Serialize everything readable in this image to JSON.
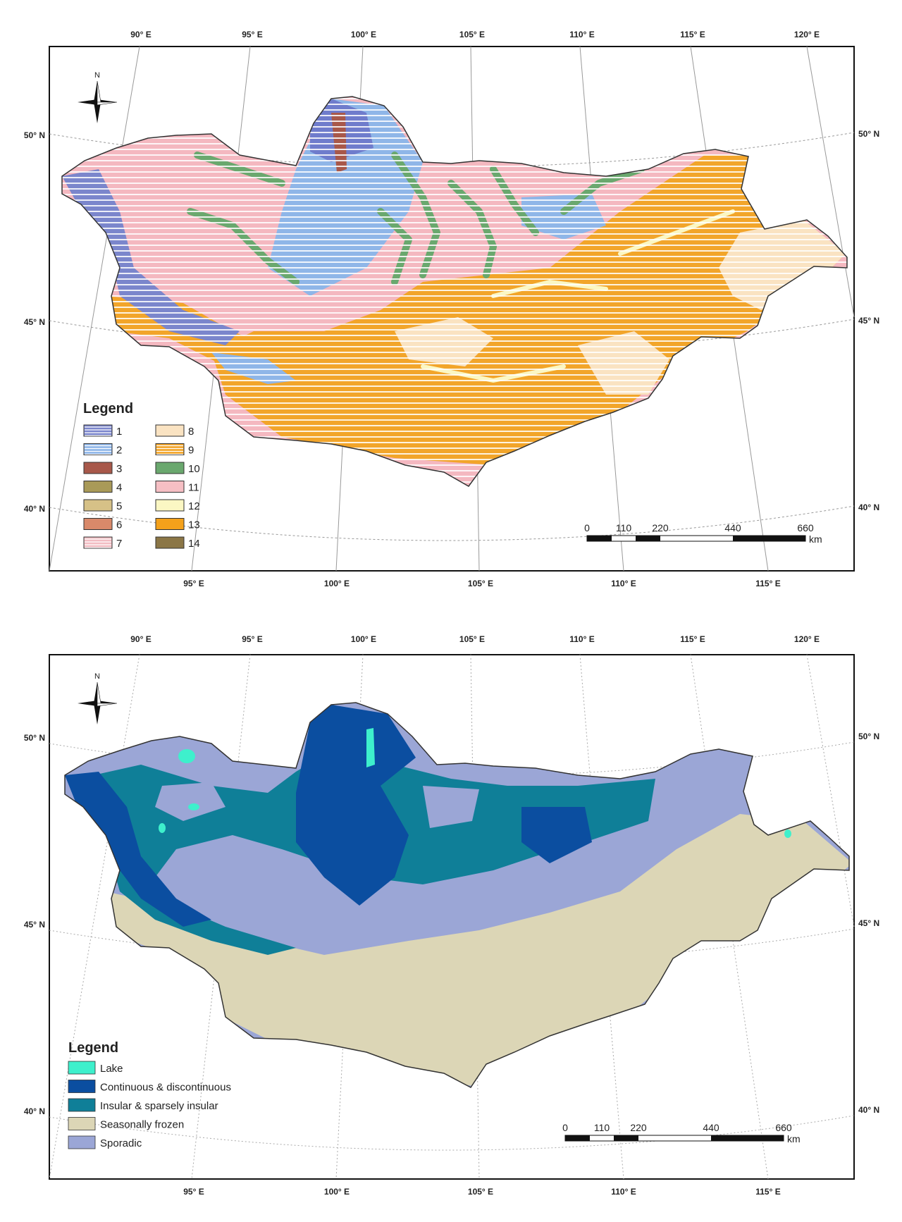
{
  "map1": {
    "top_lon_ticks": [
      "90° E",
      "95° E",
      "100° E",
      "105° E",
      "110° E",
      "115° E",
      "120° E"
    ],
    "bottom_lon_ticks": [
      "95° E",
      "100° E",
      "105° E",
      "110° E",
      "115° E"
    ],
    "left_lat_ticks": [
      "50° N",
      "45° N",
      "40° N"
    ],
    "right_lat_ticks": [
      "50° N",
      "45° N",
      "40° N"
    ],
    "north_label": "N",
    "legend_title": "Legend",
    "legend_items": [
      {
        "label": "1",
        "color": "#7b86cc",
        "hatch": true
      },
      {
        "label": "2",
        "color": "#8fb6e8",
        "hatch": true
      },
      {
        "label": "3",
        "color": "#a8584a",
        "hatch": false
      },
      {
        "label": "4",
        "color": "#a99a58",
        "hatch": false
      },
      {
        "label": "5",
        "color": "#d6c187",
        "hatch": false
      },
      {
        "label": "6",
        "color": "#d9896a",
        "hatch": false
      },
      {
        "label": "7",
        "color": "#f2bcc2",
        "hatch": true
      },
      {
        "label": "8",
        "color": "#fae3c2",
        "hatch": false
      },
      {
        "label": "9",
        "color": "#f2a52a",
        "hatch": true
      },
      {
        "label": "10",
        "color": "#6aa86e",
        "hatch": false
      },
      {
        "label": "11",
        "color": "#f6bfc4",
        "hatch": false
      },
      {
        "label": "12",
        "color": "#fbf7c3",
        "hatch": false
      },
      {
        "label": "13",
        "color": "#f4a11b",
        "hatch": false
      },
      {
        "label": "14",
        "color": "#8b7646",
        "hatch": false
      }
    ],
    "scale_labels": [
      "0",
      "110",
      "220",
      "440",
      "660"
    ],
    "scale_unit": "km"
  },
  "map2": {
    "top_lon_ticks": [
      "90° E",
      "95° E",
      "100° E",
      "105° E",
      "110° E",
      "115° E",
      "120° E"
    ],
    "bottom_lon_ticks": [
      "95° E",
      "100° E",
      "105° E",
      "110° E",
      "115° E"
    ],
    "left_lat_ticks": [
      "50° N",
      "45° N",
      "40° N"
    ],
    "right_lat_ticks": [
      "50° N",
      "45° N",
      "40° N"
    ],
    "north_label": "N",
    "legend_title": "Legend",
    "legend_items": [
      {
        "label": "Lake",
        "color": "#3ef0cc"
      },
      {
        "label": "Continuous & discontinuous",
        "color": "#0b4ea0"
      },
      {
        "label": "Insular & sparsely insular",
        "color": "#0f7f98"
      },
      {
        "label": "Seasonally frozen",
        "color": "#dcd6b6"
      },
      {
        "label": "Sporadic",
        "color": "#9ba6d6"
      }
    ],
    "scale_labels": [
      "0",
      "110",
      "220",
      "440",
      "660"
    ],
    "scale_unit": "km"
  }
}
